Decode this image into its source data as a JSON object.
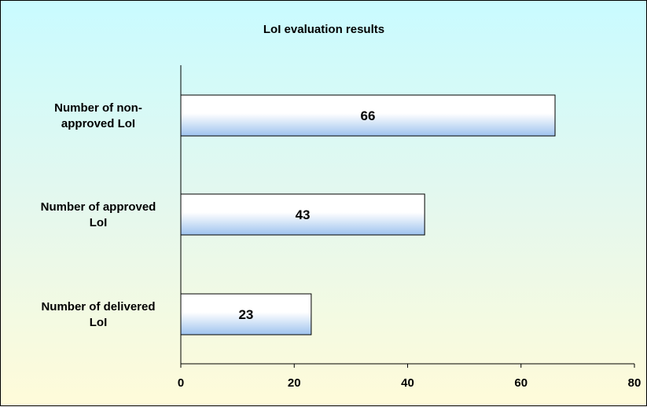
{
  "chart_data": {
    "type": "bar",
    "orientation": "horizontal",
    "title": "LoI evaluation results",
    "categories": [
      [
        "Number of non-",
        "approved LoI"
      ],
      [
        "Number of approved",
        "LoI"
      ],
      [
        "Number of delivered",
        "LoI"
      ]
    ],
    "values": [
      66,
      43,
      23
    ],
    "data_labels": [
      "66",
      "43",
      "23"
    ],
    "xlim": [
      0,
      80
    ],
    "xticks": [
      0,
      20,
      40,
      60,
      80
    ],
    "grid": false,
    "legend": "none",
    "colors": {
      "bar_fill_light": "#ffffff",
      "bar_fill_dark": "#9ec3ee",
      "bar_stroke": "#000000",
      "background_top": "#c9fbff",
      "background_bottom": "#fffbd9"
    }
  }
}
